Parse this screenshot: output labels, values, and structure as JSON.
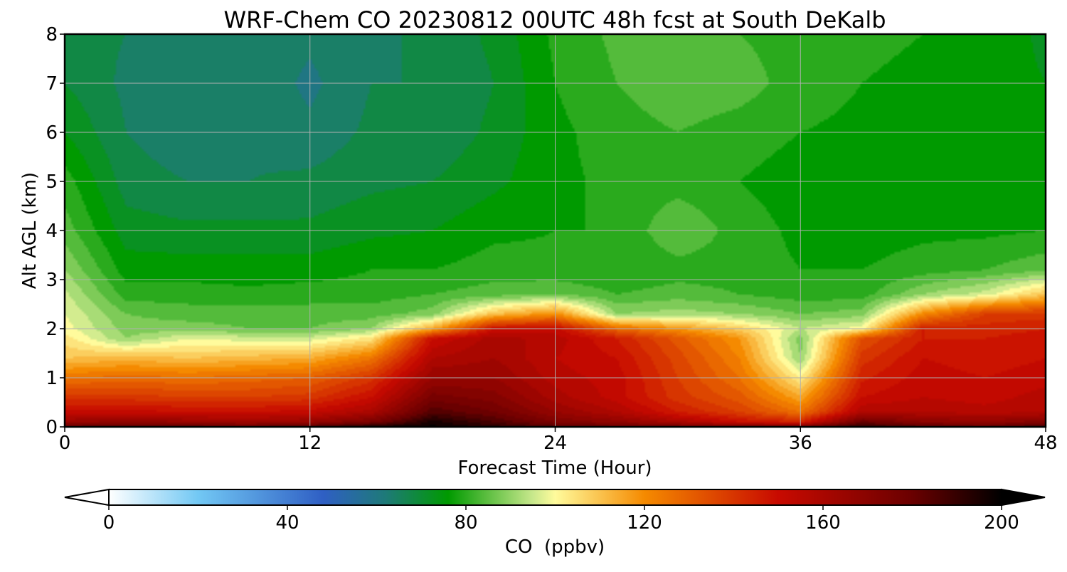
{
  "chart_data": {
    "type": "heatmap",
    "subtype": "time-height filled contour",
    "title": "WRF-Chem CO  20230812 00UTC 48h fcst at South DeKalb",
    "xlabel": "Forecast Time (Hour)",
    "ylabel": "Alt AGL (km)",
    "xlim": [
      0,
      48
    ],
    "ylim": [
      0,
      8
    ],
    "xticks": [
      0,
      12,
      24,
      36,
      48
    ],
    "yticks": [
      0,
      1,
      2,
      3,
      4,
      5,
      6,
      7,
      8
    ],
    "grid": true,
    "colorbar": {
      "label": "CO  (ppbv)",
      "orientation": "horizontal",
      "position": "bottom",
      "range": [
        0,
        200
      ],
      "ticks": [
        0,
        40,
        80,
        120,
        160,
        200
      ],
      "extend": "both",
      "colormap_stops": [
        {
          "value": 0,
          "color": "#ffffff"
        },
        {
          "value": 20,
          "color": "#72c8f4"
        },
        {
          "value": 48,
          "color": "#2f5fc4"
        },
        {
          "value": 62,
          "color": "#1e7a78"
        },
        {
          "value": 76,
          "color": "#009a00"
        },
        {
          "value": 95,
          "color": "#c8e88c"
        },
        {
          "value": 100,
          "color": "#fffb9c"
        },
        {
          "value": 120,
          "color": "#f58a00"
        },
        {
          "value": 150,
          "color": "#c80a00"
        },
        {
          "value": 180,
          "color": "#6a0000"
        },
        {
          "value": 200,
          "color": "#000000"
        }
      ]
    },
    "levels_km": [
      0,
      0.1,
      0.3,
      0.6,
      1.0,
      1.4,
      1.8,
      2.0,
      2.3,
      2.7,
      3.2,
      4.0,
      5.0,
      6.0,
      7.0,
      8.0
    ],
    "times_h": [
      0,
      3,
      6,
      9,
      12,
      15,
      18,
      21,
      24,
      27,
      30,
      33,
      36,
      39,
      42,
      45,
      48
    ],
    "values_ppbv": [
      [
        180,
        185,
        182,
        180,
        185,
        196,
        199,
        192,
        184,
        180,
        178,
        176,
        178,
        192,
        184,
        180,
        188
      ],
      [
        165,
        168,
        166,
        164,
        166,
        175,
        196,
        186,
        174,
        168,
        160,
        150,
        145,
        180,
        170,
        168,
        172
      ],
      [
        152,
        152,
        150,
        150,
        152,
        160,
        185,
        178,
        166,
        158,
        146,
        138,
        126,
        158,
        158,
        156,
        158
      ],
      [
        140,
        140,
        138,
        138,
        140,
        150,
        176,
        172,
        160,
        152,
        140,
        132,
        115,
        150,
        154,
        152,
        156
      ],
      [
        125,
        128,
        126,
        128,
        130,
        140,
        166,
        166,
        156,
        152,
        138,
        126,
        102,
        145,
        152,
        150,
        152
      ],
      [
        110,
        112,
        110,
        112,
        114,
        125,
        158,
        162,
        154,
        150,
        136,
        122,
        90,
        140,
        150,
        148,
        150
      ],
      [
        104,
        90,
        98,
        96,
        96,
        104,
        150,
        160,
        156,
        146,
        132,
        118,
        88,
        134,
        146,
        146,
        148
      ],
      [
        100,
        88,
        88,
        86,
        86,
        90,
        115,
        150,
        152,
        128,
        118,
        108,
        94,
        100,
        146,
        144,
        146
      ],
      [
        98,
        86,
        84,
        84,
        84,
        84,
        88,
        110,
        120,
        90,
        92,
        90,
        86,
        88,
        120,
        138,
        140
      ],
      [
        95,
        80,
        80,
        79,
        80,
        80,
        82,
        84,
        86,
        82,
        84,
        82,
        80,
        80,
        90,
        96,
        110
      ],
      [
        90,
        76,
        76,
        76,
        76,
        78,
        78,
        80,
        79,
        78,
        80,
        80,
        78,
        78,
        80,
        82,
        85
      ],
      [
        84,
        72,
        71,
        71,
        71,
        73,
        74,
        77,
        78,
        78,
        86,
        80,
        77,
        76,
        77,
        77,
        78
      ],
      [
        80,
        68,
        66,
        66,
        67,
        69,
        70,
        73,
        77,
        79,
        80,
        78,
        76,
        76,
        76,
        76,
        77
      ],
      [
        74,
        66,
        63,
        65,
        63,
        67,
        67,
        71,
        77,
        80,
        82,
        80,
        78,
        77,
        77,
        76,
        75
      ],
      [
        70,
        65,
        64,
        65,
        61,
        66,
        66,
        70,
        78,
        82,
        85,
        84,
        80,
        78,
        77,
        76,
        74
      ],
      [
        68,
        66,
        65,
        65,
        63,
        65,
        67,
        71,
        79,
        83,
        84,
        82,
        80,
        79,
        78,
        77,
        73
      ]
    ]
  }
}
